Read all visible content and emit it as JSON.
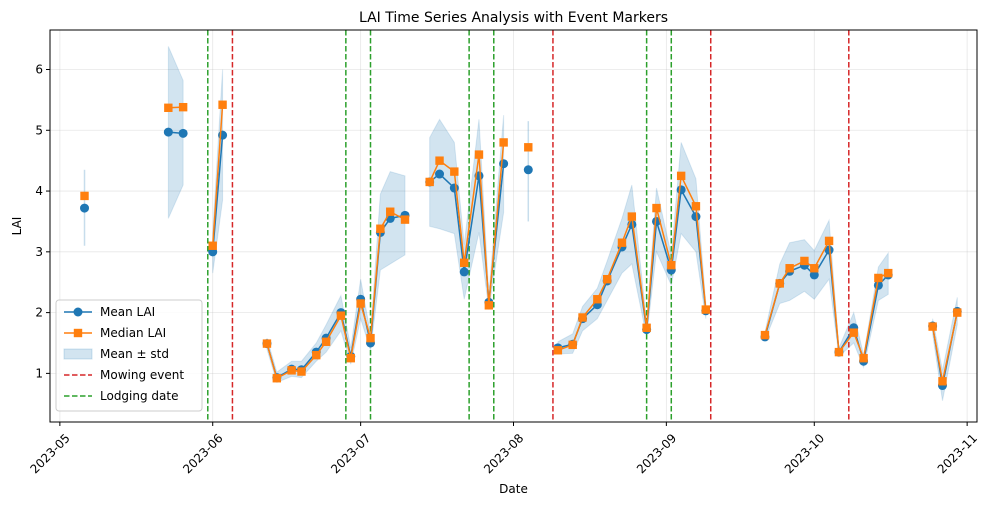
{
  "chart_data": {
    "type": "line",
    "title": "LAI Time Series Analysis with Event Markers",
    "xlabel": "Date",
    "ylabel": "LAI",
    "xlim": [
      "2023-04-29",
      "2023-11-03"
    ],
    "ylim": [
      0.2,
      6.65
    ],
    "grid": true,
    "legend_position": "lower-left",
    "x_ticks": [
      "2023-05-01",
      "2023-06-01",
      "2023-07-01",
      "2023-08-01",
      "2023-09-01",
      "2023-10-01",
      "2023-11-01"
    ],
    "x_tick_labels": [
      "2023-05",
      "2023-06",
      "2023-07",
      "2023-08",
      "2023-09",
      "2023-10",
      "2023-11"
    ],
    "y_ticks": [
      1,
      2,
      3,
      4,
      5,
      6
    ],
    "y_tick_labels": [
      "1",
      "2",
      "3",
      "4",
      "5",
      "6"
    ],
    "series": [
      {
        "name": "Mean LAI",
        "color": "#1f77b4",
        "marker": "circle",
        "segments": [
          [
            [
              "2023-05-06",
              3.72
            ]
          ],
          [
            [
              "2023-05-23",
              4.97
            ],
            [
              "2023-05-26",
              4.95
            ]
          ],
          [
            [
              "2023-06-01",
              3.0
            ],
            [
              "2023-06-03",
              4.92
            ]
          ],
          [
            [
              "2023-06-12",
              1.49
            ],
            [
              "2023-06-14",
              0.93
            ],
            [
              "2023-06-17",
              1.07
            ],
            [
              "2023-06-19",
              1.06
            ],
            [
              "2023-06-22",
              1.35
            ],
            [
              "2023-06-24",
              1.58
            ],
            [
              "2023-06-27",
              2.0
            ],
            [
              "2023-06-29",
              1.28
            ],
            [
              "2023-07-01",
              2.22
            ],
            [
              "2023-07-03",
              1.5
            ],
            [
              "2023-07-05",
              3.32
            ],
            [
              "2023-07-07",
              3.55
            ],
            [
              "2023-07-10",
              3.6
            ]
          ],
          [
            [
              "2023-07-15",
              4.15
            ],
            [
              "2023-07-17",
              4.28
            ],
            [
              "2023-07-20",
              4.05
            ],
            [
              "2023-07-22",
              2.67
            ],
            [
              "2023-07-25",
              4.25
            ],
            [
              "2023-07-27",
              2.17
            ],
            [
              "2023-07-30",
              4.45
            ]
          ],
          [
            [
              "2023-08-04",
              4.35
            ]
          ],
          [
            [
              "2023-08-10",
              1.42
            ],
            [
              "2023-08-13",
              1.48
            ],
            [
              "2023-08-15",
              1.9
            ],
            [
              "2023-08-18",
              2.13
            ],
            [
              "2023-08-20",
              2.52
            ],
            [
              "2023-08-23",
              3.08
            ],
            [
              "2023-08-25",
              3.45
            ],
            [
              "2023-08-28",
              1.72
            ],
            [
              "2023-08-30",
              3.5
            ],
            [
              "2023-09-02",
              2.7
            ],
            [
              "2023-09-04",
              4.02
            ],
            [
              "2023-09-07",
              3.58
            ],
            [
              "2023-09-09",
              2.03
            ]
          ],
          [
            [
              "2023-09-21",
              1.6
            ],
            [
              "2023-09-24",
              2.48
            ],
            [
              "2023-09-26",
              2.68
            ],
            [
              "2023-09-29",
              2.78
            ],
            [
              "2023-10-01",
              2.62
            ],
            [
              "2023-10-04",
              3.03
            ],
            [
              "2023-10-06",
              1.35
            ],
            [
              "2023-10-09",
              1.75
            ],
            [
              "2023-10-11",
              1.2
            ],
            [
              "2023-10-14",
              2.45
            ],
            [
              "2023-10-16",
              2.62
            ]
          ],
          [
            [
              "2023-10-25",
              1.78
            ],
            [
              "2023-10-27",
              0.8
            ],
            [
              "2023-10-30",
              2.02
            ]
          ]
        ]
      },
      {
        "name": "Median LAI",
        "color": "#ff7f0e",
        "marker": "square",
        "segments": [
          [
            [
              "2023-05-06",
              3.92
            ]
          ],
          [
            [
              "2023-05-23",
              5.37
            ],
            [
              "2023-05-26",
              5.38
            ]
          ],
          [
            [
              "2023-06-01",
              3.1
            ],
            [
              "2023-06-03",
              5.42
            ]
          ],
          [
            [
              "2023-06-12",
              1.49
            ],
            [
              "2023-06-14",
              0.92
            ],
            [
              "2023-06-17",
              1.05
            ],
            [
              "2023-06-19",
              1.03
            ],
            [
              "2023-06-22",
              1.3
            ],
            [
              "2023-06-24",
              1.52
            ],
            [
              "2023-06-27",
              1.95
            ],
            [
              "2023-06-29",
              1.25
            ],
            [
              "2023-07-01",
              2.15
            ],
            [
              "2023-07-03",
              1.58
            ],
            [
              "2023-07-05",
              3.38
            ],
            [
              "2023-07-07",
              3.66
            ],
            [
              "2023-07-10",
              3.53
            ]
          ],
          [
            [
              "2023-07-15",
              4.15
            ],
            [
              "2023-07-17",
              4.5
            ],
            [
              "2023-07-20",
              4.32
            ],
            [
              "2023-07-22",
              2.82
            ],
            [
              "2023-07-25",
              4.6
            ],
            [
              "2023-07-27",
              2.12
            ],
            [
              "2023-07-30",
              4.8
            ]
          ],
          [
            [
              "2023-08-04",
              4.72
            ]
          ],
          [
            [
              "2023-08-10",
              1.38
            ],
            [
              "2023-08-13",
              1.47
            ],
            [
              "2023-08-15",
              1.92
            ],
            [
              "2023-08-18",
              2.22
            ],
            [
              "2023-08-20",
              2.55
            ],
            [
              "2023-08-23",
              3.15
            ],
            [
              "2023-08-25",
              3.58
            ],
            [
              "2023-08-28",
              1.75
            ],
            [
              "2023-08-30",
              3.72
            ],
            [
              "2023-09-02",
              2.78
            ],
            [
              "2023-09-04",
              4.25
            ],
            [
              "2023-09-07",
              3.75
            ],
            [
              "2023-09-09",
              2.05
            ]
          ],
          [
            [
              "2023-09-21",
              1.63
            ],
            [
              "2023-09-24",
              2.48
            ],
            [
              "2023-09-26",
              2.73
            ],
            [
              "2023-09-29",
              2.85
            ],
            [
              "2023-10-01",
              2.73
            ],
            [
              "2023-10-04",
              3.18
            ],
            [
              "2023-10-06",
              1.35
            ],
            [
              "2023-10-09",
              1.67
            ],
            [
              "2023-10-11",
              1.25
            ],
            [
              "2023-10-14",
              2.57
            ],
            [
              "2023-10-16",
              2.65
            ]
          ],
          [
            [
              "2023-10-25",
              1.77
            ],
            [
              "2023-10-27",
              0.87
            ],
            [
              "2023-10-30",
              2.0
            ]
          ]
        ]
      }
    ],
    "std_band": {
      "name": "Mean ± std",
      "color": "#1f77b4",
      "opacity": 0.2,
      "segments": [
        [
          [
            "2023-05-06",
            3.1,
            4.35
          ]
        ],
        [
          [
            "2023-05-23",
            3.55,
            6.38
          ],
          [
            "2023-05-26",
            4.1,
            5.82
          ]
        ],
        [
          [
            "2023-06-01",
            2.65,
            3.32
          ],
          [
            "2023-06-03",
            3.85,
            6.0
          ]
        ],
        [
          [
            "2023-06-12",
            1.4,
            1.58
          ],
          [
            "2023-06-14",
            0.85,
            1.02
          ],
          [
            "2023-06-17",
            0.95,
            1.2
          ],
          [
            "2023-06-19",
            0.93,
            1.2
          ],
          [
            "2023-06-22",
            1.2,
            1.5
          ],
          [
            "2023-06-24",
            1.35,
            1.8
          ],
          [
            "2023-06-27",
            1.7,
            2.28
          ],
          [
            "2023-06-29",
            1.15,
            1.42
          ],
          [
            "2023-07-01",
            1.9,
            2.55
          ],
          [
            "2023-07-03",
            1.38,
            1.65
          ],
          [
            "2023-07-05",
            2.7,
            3.95
          ],
          [
            "2023-07-07",
            2.8,
            4.32
          ],
          [
            "2023-07-10",
            2.95,
            4.25
          ]
        ],
        [
          [
            "2023-07-15",
            3.42,
            4.88
          ],
          [
            "2023-07-17",
            3.38,
            5.18
          ],
          [
            "2023-07-20",
            3.3,
            4.8
          ],
          [
            "2023-07-22",
            2.22,
            3.12
          ],
          [
            "2023-07-25",
            3.32,
            5.18
          ],
          [
            "2023-07-27",
            2.05,
            2.3
          ],
          [
            "2023-07-30",
            3.65,
            5.25
          ]
        ],
        [
          [
            "2023-08-04",
            3.5,
            5.15
          ]
        ],
        [
          [
            "2023-08-10",
            1.32,
            1.52
          ],
          [
            "2023-08-13",
            1.33,
            1.65
          ],
          [
            "2023-08-15",
            1.7,
            2.1
          ],
          [
            "2023-08-18",
            1.9,
            2.4
          ],
          [
            "2023-08-20",
            2.2,
            2.85
          ],
          [
            "2023-08-23",
            2.65,
            3.55
          ],
          [
            "2023-08-25",
            2.8,
            4.1
          ],
          [
            "2023-08-28",
            1.6,
            1.85
          ],
          [
            "2023-08-30",
            3.0,
            4.05
          ],
          [
            "2023-09-02",
            2.45,
            2.95
          ],
          [
            "2023-09-04",
            3.3,
            4.8
          ],
          [
            "2023-09-07",
            3.0,
            4.2
          ],
          [
            "2023-09-09",
            1.9,
            2.15
          ]
        ],
        [
          [
            "2023-09-21",
            1.55,
            1.68
          ],
          [
            "2023-09-24",
            2.15,
            2.8
          ],
          [
            "2023-09-26",
            2.2,
            3.15
          ],
          [
            "2023-09-29",
            2.35,
            3.2
          ],
          [
            "2023-10-01",
            2.22,
            3.02
          ],
          [
            "2023-10-04",
            2.55,
            3.52
          ],
          [
            "2023-10-06",
            1.28,
            1.42
          ],
          [
            "2023-10-09",
            1.5,
            2.0
          ],
          [
            "2023-10-11",
            1.1,
            1.3
          ],
          [
            "2023-10-14",
            2.2,
            2.75
          ],
          [
            "2023-10-16",
            2.3,
            2.98
          ]
        ],
        [
          [
            "2023-10-25",
            1.65,
            1.9
          ],
          [
            "2023-10-27",
            0.55,
            1.05
          ],
          [
            "2023-10-30",
            1.8,
            2.25
          ]
        ]
      ]
    },
    "event_lines": [
      {
        "name": "Mowing event",
        "color": "#d62728",
        "style": "dashed",
        "dates": [
          "2023-06-05",
          "2023-08-09",
          "2023-09-10",
          "2023-10-08"
        ]
      },
      {
        "name": "Lodging date",
        "color": "#2ca02c",
        "style": "dashed",
        "dates": [
          "2023-05-31",
          "2023-06-28",
          "2023-07-03",
          "2023-07-23",
          "2023-07-28",
          "2023-08-28",
          "2023-09-02"
        ]
      }
    ]
  }
}
